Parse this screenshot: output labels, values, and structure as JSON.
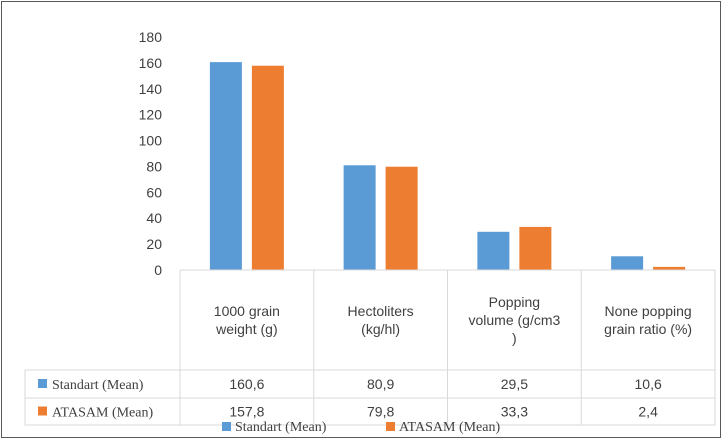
{
  "chart_data": {
    "type": "bar",
    "categories": [
      [
        "1000 grain",
        "weight (g)"
      ],
      [
        "Hectoliters",
        "(kg/hl)"
      ],
      [
        "Popping",
        "volume (g/cm3",
        ")"
      ],
      [
        "None popping",
        "grain ratio (%)"
      ]
    ],
    "series": [
      {
        "name": "Standart (Mean)",
        "values": [
          160.6,
          80.9,
          29.5,
          10.6
        ],
        "labels": [
          "160,6",
          "80,9",
          "29,5",
          "10,6"
        ],
        "color": "#5B9BD5"
      },
      {
        "name": "ATASAM (Mean)",
        "values": [
          157.8,
          79.8,
          33.3,
          2.4
        ],
        "labels": [
          "157,8",
          "79,8",
          "33,3",
          "2,4"
        ],
        "color": "#ED7D31"
      }
    ],
    "yticks": [
      "0",
      "20",
      "40",
      "60",
      "80",
      "100",
      "120",
      "140",
      "160",
      "180"
    ],
    "ylim": [
      0,
      180
    ],
    "grid": false,
    "legend": "bottom",
    "data_table": true
  }
}
